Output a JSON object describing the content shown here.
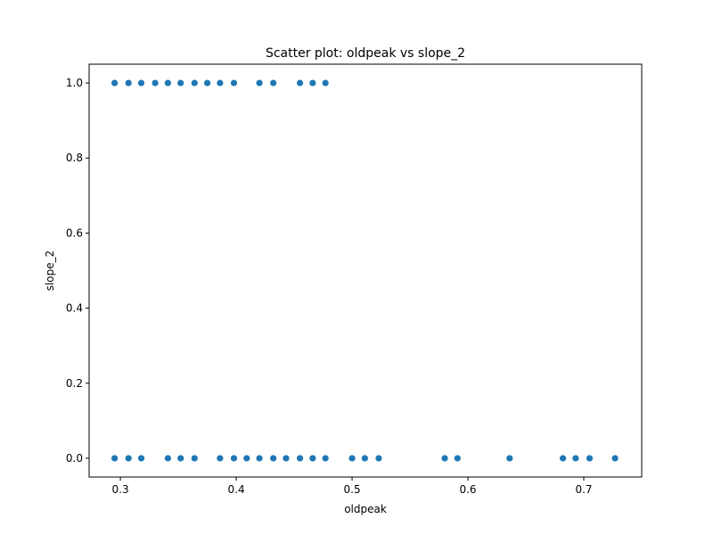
{
  "chart_data": {
    "type": "scatter",
    "title": "Scatter plot: oldpeak vs slope_2",
    "xlabel": "oldpeak",
    "ylabel": "slope_2",
    "xlim": [
      0.273,
      0.75
    ],
    "ylim": [
      -0.05,
      1.05
    ],
    "grid": false,
    "x_ticks": [
      0.3,
      0.4,
      0.5,
      0.6,
      0.7
    ],
    "x_tick_labels": [
      "0.3",
      "0.4",
      "0.5",
      "0.6",
      "0.7"
    ],
    "y_ticks": [
      0.0,
      0.2,
      0.4,
      0.6,
      0.8,
      1.0
    ],
    "y_tick_labels": [
      "0.0",
      "0.2",
      "0.4",
      "0.6",
      "0.8",
      "1.0"
    ],
    "marker_color": "#1f77b4",
    "series": [
      {
        "points": [
          {
            "x": 0.295,
            "y": 1
          },
          {
            "x": 0.307,
            "y": 1
          },
          {
            "x": 0.318,
            "y": 1
          },
          {
            "x": 0.33,
            "y": 1
          },
          {
            "x": 0.341,
            "y": 1
          },
          {
            "x": 0.352,
            "y": 1
          },
          {
            "x": 0.364,
            "y": 1
          },
          {
            "x": 0.375,
            "y": 1
          },
          {
            "x": 0.386,
            "y": 1
          },
          {
            "x": 0.398,
            "y": 1
          },
          {
            "x": 0.42,
            "y": 1
          },
          {
            "x": 0.432,
            "y": 1
          },
          {
            "x": 0.455,
            "y": 1
          },
          {
            "x": 0.466,
            "y": 1
          },
          {
            "x": 0.477,
            "y": 1
          },
          {
            "x": 0.295,
            "y": 0
          },
          {
            "x": 0.307,
            "y": 0
          },
          {
            "x": 0.318,
            "y": 0
          },
          {
            "x": 0.341,
            "y": 0
          },
          {
            "x": 0.352,
            "y": 0
          },
          {
            "x": 0.364,
            "y": 0
          },
          {
            "x": 0.386,
            "y": 0
          },
          {
            "x": 0.398,
            "y": 0
          },
          {
            "x": 0.409,
            "y": 0
          },
          {
            "x": 0.42,
            "y": 0
          },
          {
            "x": 0.432,
            "y": 0
          },
          {
            "x": 0.443,
            "y": 0
          },
          {
            "x": 0.455,
            "y": 0
          },
          {
            "x": 0.466,
            "y": 0
          },
          {
            "x": 0.477,
            "y": 0
          },
          {
            "x": 0.5,
            "y": 0
          },
          {
            "x": 0.511,
            "y": 0
          },
          {
            "x": 0.523,
            "y": 0
          },
          {
            "x": 0.58,
            "y": 0
          },
          {
            "x": 0.591,
            "y": 0
          },
          {
            "x": 0.636,
            "y": 0
          },
          {
            "x": 0.682,
            "y": 0
          },
          {
            "x": 0.693,
            "y": 0
          },
          {
            "x": 0.705,
            "y": 0
          },
          {
            "x": 0.727,
            "y": 0
          }
        ]
      }
    ]
  }
}
